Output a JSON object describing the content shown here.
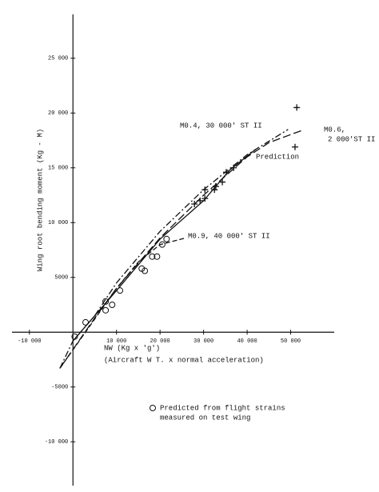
{
  "chart_data": {
    "type": "line",
    "y_label": "Wing root bending moment (Kg - M)",
    "x_label": "NW (Kg x 'g')",
    "x_sublabel": "(Aircraft W T. x normal acceleration)",
    "legend_text": [
      "Predicted from flight strains",
      "measured on test wing"
    ],
    "xlim": [
      -14000,
      60000
    ],
    "ylim": [
      -14000,
      29000
    ],
    "xticks": [
      {
        "value": -10000,
        "label": "-10 000"
      },
      {
        "value": 10000,
        "label": "10 000"
      },
      {
        "value": 20000,
        "label": "20 000"
      },
      {
        "value": 30000,
        "label": "30 000"
      },
      {
        "value": 40000,
        "label": "40 000"
      },
      {
        "value": 50000,
        "label": "50 000"
      }
    ],
    "yticks": [
      {
        "value": 25000,
        "label": "25 000"
      },
      {
        "value": 20000,
        "label": "20 000"
      },
      {
        "value": 15000,
        "label": "15 000"
      },
      {
        "value": 10000,
        "label": "10 000"
      },
      5000,
      -5000,
      {
        "value": -10000,
        "label": "-10 000"
      }
    ],
    "color": "#111111",
    "series": [
      {
        "marker": "circle",
        "x": [
          400,
          2900,
          7500,
          7500,
          9000,
          10800,
          15800,
          16500,
          18200,
          19300,
          20500,
          21500
        ],
        "values": [
          -400,
          900,
          2800,
          2000,
          2500,
          3800,
          5800,
          5600,
          6900,
          6900,
          8000,
          8500
        ]
      },
      {
        "marker": "plus",
        "x": [
          27900,
          29200,
          30300,
          30300,
          32500,
          32800,
          34300,
          35200,
          36900,
          51000,
          51400
        ],
        "values": [
          11700,
          12000,
          12200,
          13000,
          13000,
          13300,
          13700,
          14600,
          15000,
          16900,
          20500
        ]
      },
      {
        "line": "dashdot",
        "label_lines": [
          "M0.4, 30 000' ST II"
        ],
        "x": [
          -3000,
          0,
          5000,
          10000,
          20000,
          30000,
          40000,
          49400
        ],
        "values": [
          -3300,
          -800,
          1500,
          4500,
          9200,
          13000,
          16200,
          18500
        ]
      },
      {
        "line": "longdash",
        "label_lines": [
          "M0.6,",
          "2 000'ST II"
        ],
        "x": [
          -3000,
          5000,
          10000,
          20000,
          30000,
          40000,
          45000,
          52500
        ],
        "values": [
          -3300,
          1300,
          4000,
          8600,
          12500,
          16000,
          17300,
          18400
        ]
      },
      {
        "line": "solid",
        "label_lines": [
          "Prediction"
        ],
        "x": [
          0,
          10000,
          20000,
          30000,
          36000,
          42000
        ],
        "values": [
          -800,
          3800,
          8500,
          12000,
          14800,
          16700
        ]
      },
      {
        "line": "dashed",
        "label_lines": [
          "M0.9, 40 000' ST II"
        ],
        "x": [
          -3000,
          5000,
          10000,
          15000,
          20000,
          25900
        ],
        "values": [
          -3300,
          1200,
          4000,
          6400,
          8000,
          8600
        ]
      }
    ]
  }
}
